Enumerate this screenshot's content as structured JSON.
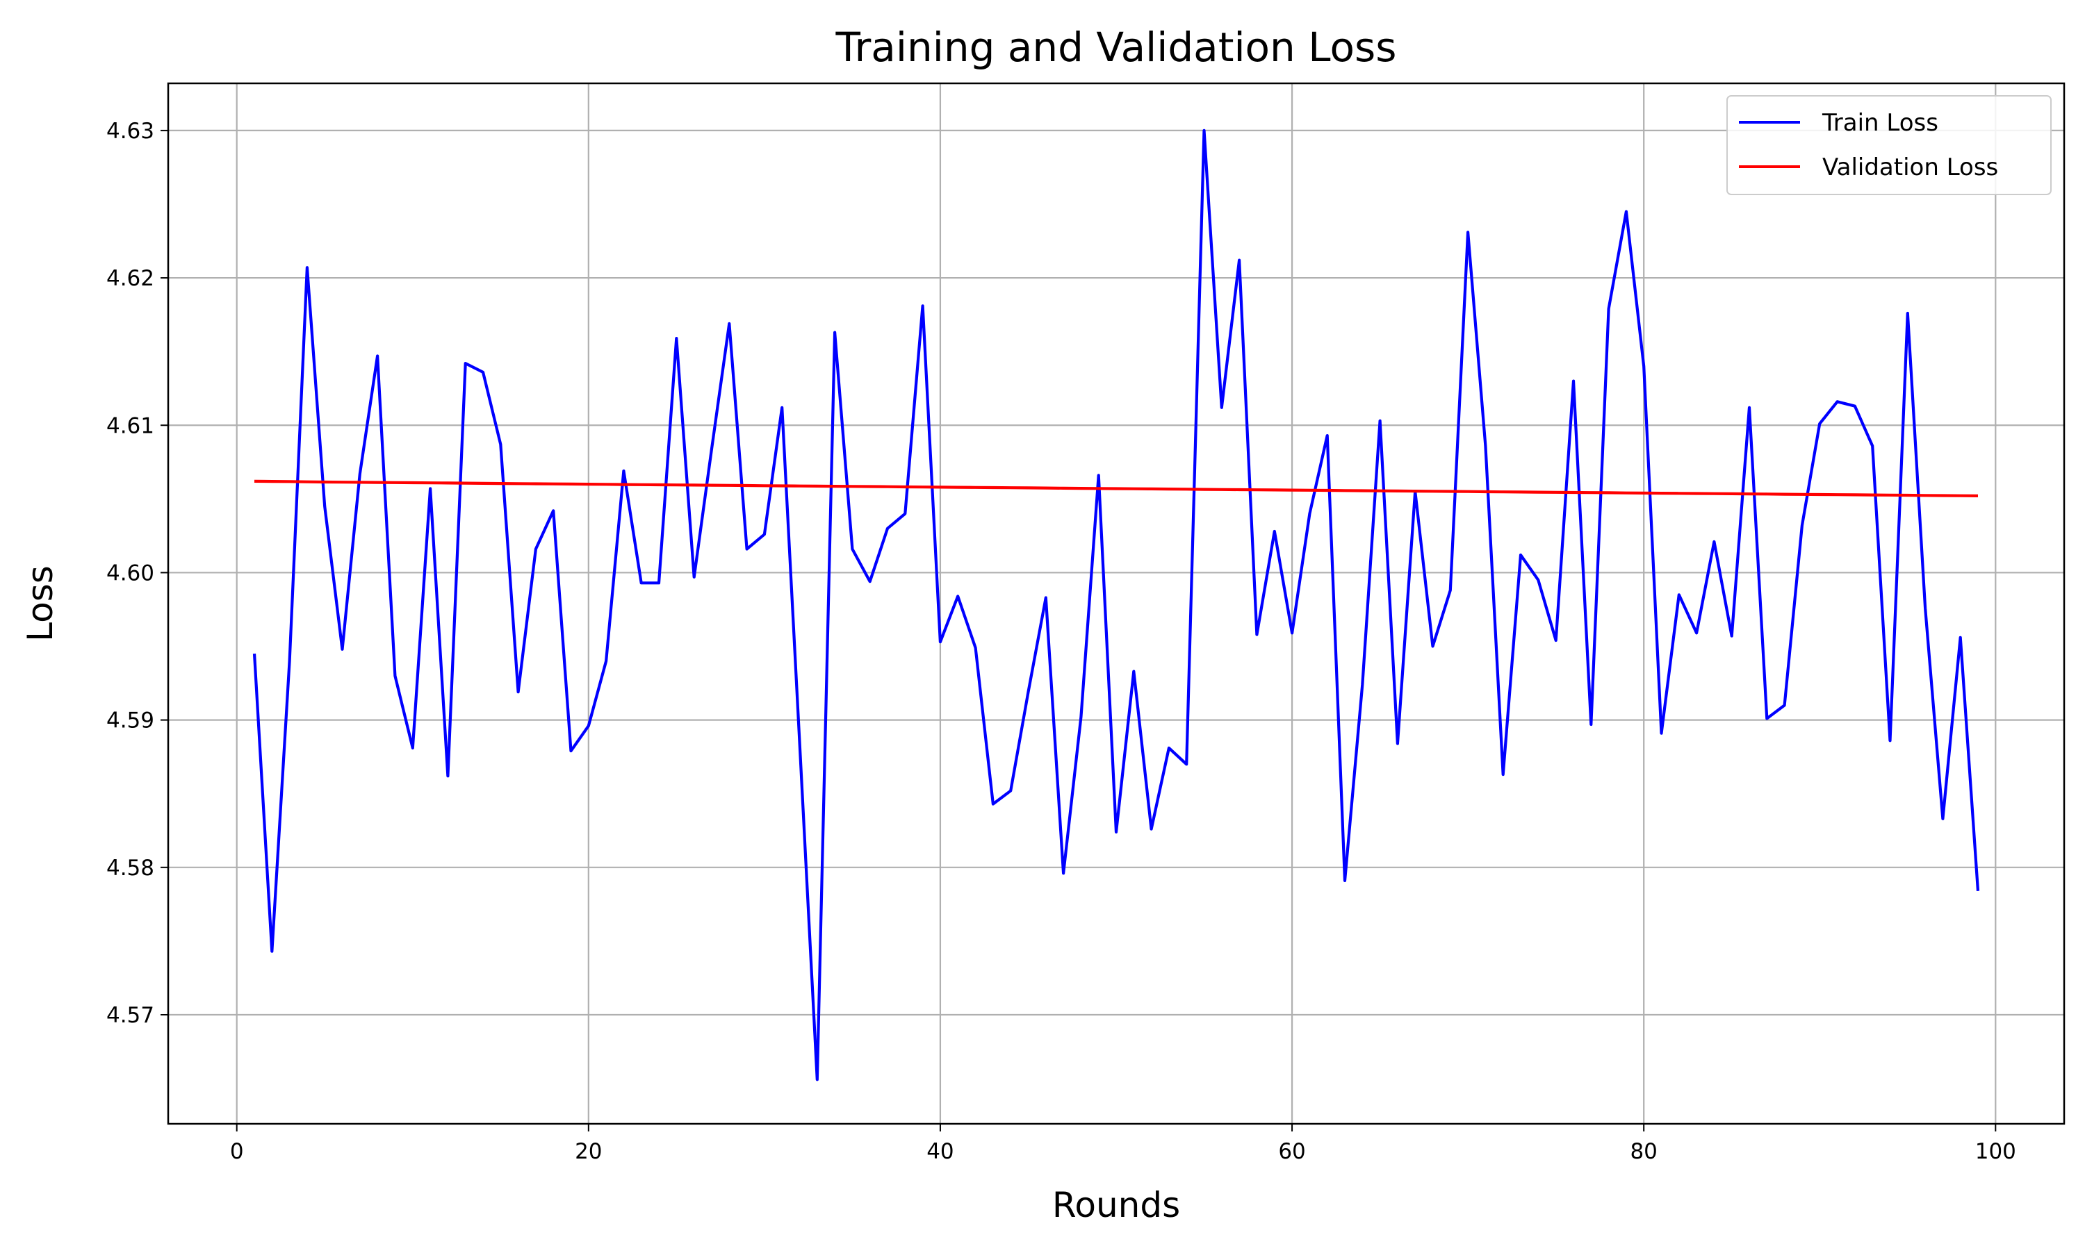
{
  "chart_data": {
    "type": "line",
    "title": "Training and Validation Loss",
    "xlabel": "Rounds",
    "ylabel": "Loss",
    "xlim": [
      -3.9,
      103.9
    ],
    "ylim": [
      4.5626,
      4.6332
    ],
    "xticks": [
      0,
      20,
      40,
      60,
      80,
      100
    ],
    "yticks": [
      4.57,
      4.58,
      4.59,
      4.6,
      4.61,
      4.62,
      4.63
    ],
    "xtick_labels": [
      "0",
      "20",
      "40",
      "60",
      "80",
      "100"
    ],
    "ytick_labels": [
      "4.57",
      "4.58",
      "4.59",
      "4.60",
      "4.61",
      "4.62",
      "4.63"
    ],
    "grid": true,
    "legend_position": "top-right",
    "x": [
      1,
      2,
      3,
      4,
      5,
      6,
      7,
      8,
      9,
      10,
      11,
      12,
      13,
      14,
      15,
      16,
      17,
      18,
      19,
      20,
      21,
      22,
      23,
      24,
      25,
      26,
      27,
      28,
      29,
      30,
      31,
      32,
      33,
      34,
      35,
      36,
      37,
      38,
      39,
      40,
      41,
      42,
      43,
      44,
      45,
      46,
      47,
      48,
      49,
      50,
      51,
      52,
      53,
      54,
      55,
      56,
      57,
      58,
      59,
      60,
      61,
      62,
      63,
      64,
      65,
      66,
      67,
      68,
      69,
      70,
      71,
      72,
      73,
      74,
      75,
      76,
      77,
      78,
      79,
      80,
      81,
      82,
      83,
      84,
      85,
      86,
      87,
      88,
      89,
      90,
      91,
      92,
      93,
      94,
      95,
      96,
      97,
      98,
      99
    ],
    "series": [
      {
        "name": "Train Loss",
        "color": "#0000ff",
        "values": [
          4.5945,
          4.5743,
          4.594,
          4.6207,
          4.6045,
          4.5948,
          4.6067,
          4.6147,
          4.593,
          4.5881,
          4.6057,
          4.5862,
          4.6142,
          4.6136,
          4.6087,
          4.5919,
          4.6016,
          4.6042,
          4.5879,
          4.5896,
          4.594,
          4.6069,
          4.5993,
          4.5993,
          4.6159,
          4.5997,
          4.6084,
          4.6169,
          4.6016,
          4.6026,
          4.6112,
          4.5885,
          4.5656,
          4.6163,
          4.6016,
          4.5994,
          4.603,
          4.604,
          4.6181,
          4.5953,
          4.5984,
          4.5949,
          4.5843,
          4.5852,
          4.5919,
          4.5983,
          4.5796,
          4.5902,
          4.6066,
          4.5824,
          4.5933,
          4.5826,
          4.5881,
          4.587,
          4.63,
          4.6112,
          4.6212,
          4.5958,
          4.6028,
          4.5959,
          4.604,
          4.6093,
          4.5791,
          4.5924,
          4.6103,
          4.5884,
          4.6055,
          4.595,
          4.5988,
          4.6231,
          4.6086,
          4.5863,
          4.6012,
          4.5995,
          4.5954,
          4.613,
          4.5897,
          4.6179,
          4.6245,
          4.614,
          4.5891,
          4.5985,
          4.5959,
          4.6021,
          4.5957,
          4.6112,
          4.5901,
          4.591,
          4.6032,
          4.6101,
          4.6116,
          4.6113,
          4.6086,
          4.5886,
          4.6176,
          4.5976,
          4.5833,
          4.5956,
          4.5784
        ]
      },
      {
        "name": "Validation Loss",
        "color": "#ff0000",
        "values": [
          4.6062,
          4.60619,
          4.60618,
          4.60616,
          4.60615,
          4.60614,
          4.60613,
          4.60612,
          4.60611,
          4.6061,
          4.60609,
          4.60608,
          4.60607,
          4.60606,
          4.60605,
          4.60604,
          4.60603,
          4.60602,
          4.60601,
          4.606,
          4.60599,
          4.60598,
          4.60597,
          4.60596,
          4.60595,
          4.60594,
          4.60593,
          4.60592,
          4.60591,
          4.6059,
          4.60589,
          4.60588,
          4.60587,
          4.60586,
          4.60585,
          4.60584,
          4.60583,
          4.60582,
          4.60581,
          4.6058,
          4.60579,
          4.60578,
          4.60577,
          4.60576,
          4.60575,
          4.60574,
          4.60573,
          4.60572,
          4.60571,
          4.6057,
          4.60569,
          4.60568,
          4.60567,
          4.60566,
          4.60565,
          4.60564,
          4.60563,
          4.60562,
          4.60561,
          4.6056,
          4.60559,
          4.60558,
          4.60557,
          4.60556,
          4.60555,
          4.60554,
          4.60553,
          4.60552,
          4.60551,
          4.6055,
          4.60549,
          4.60548,
          4.60547,
          4.60546,
          4.60545,
          4.60544,
          4.60543,
          4.60542,
          4.60541,
          4.6054,
          4.60539,
          4.60538,
          4.60537,
          4.60536,
          4.60535,
          4.60534,
          4.60533,
          4.60532,
          4.60531,
          4.6053,
          4.60529,
          4.60528,
          4.60527,
          4.60526,
          4.60525,
          4.60524,
          4.60523,
          4.60522,
          4.60521
        ]
      }
    ]
  }
}
